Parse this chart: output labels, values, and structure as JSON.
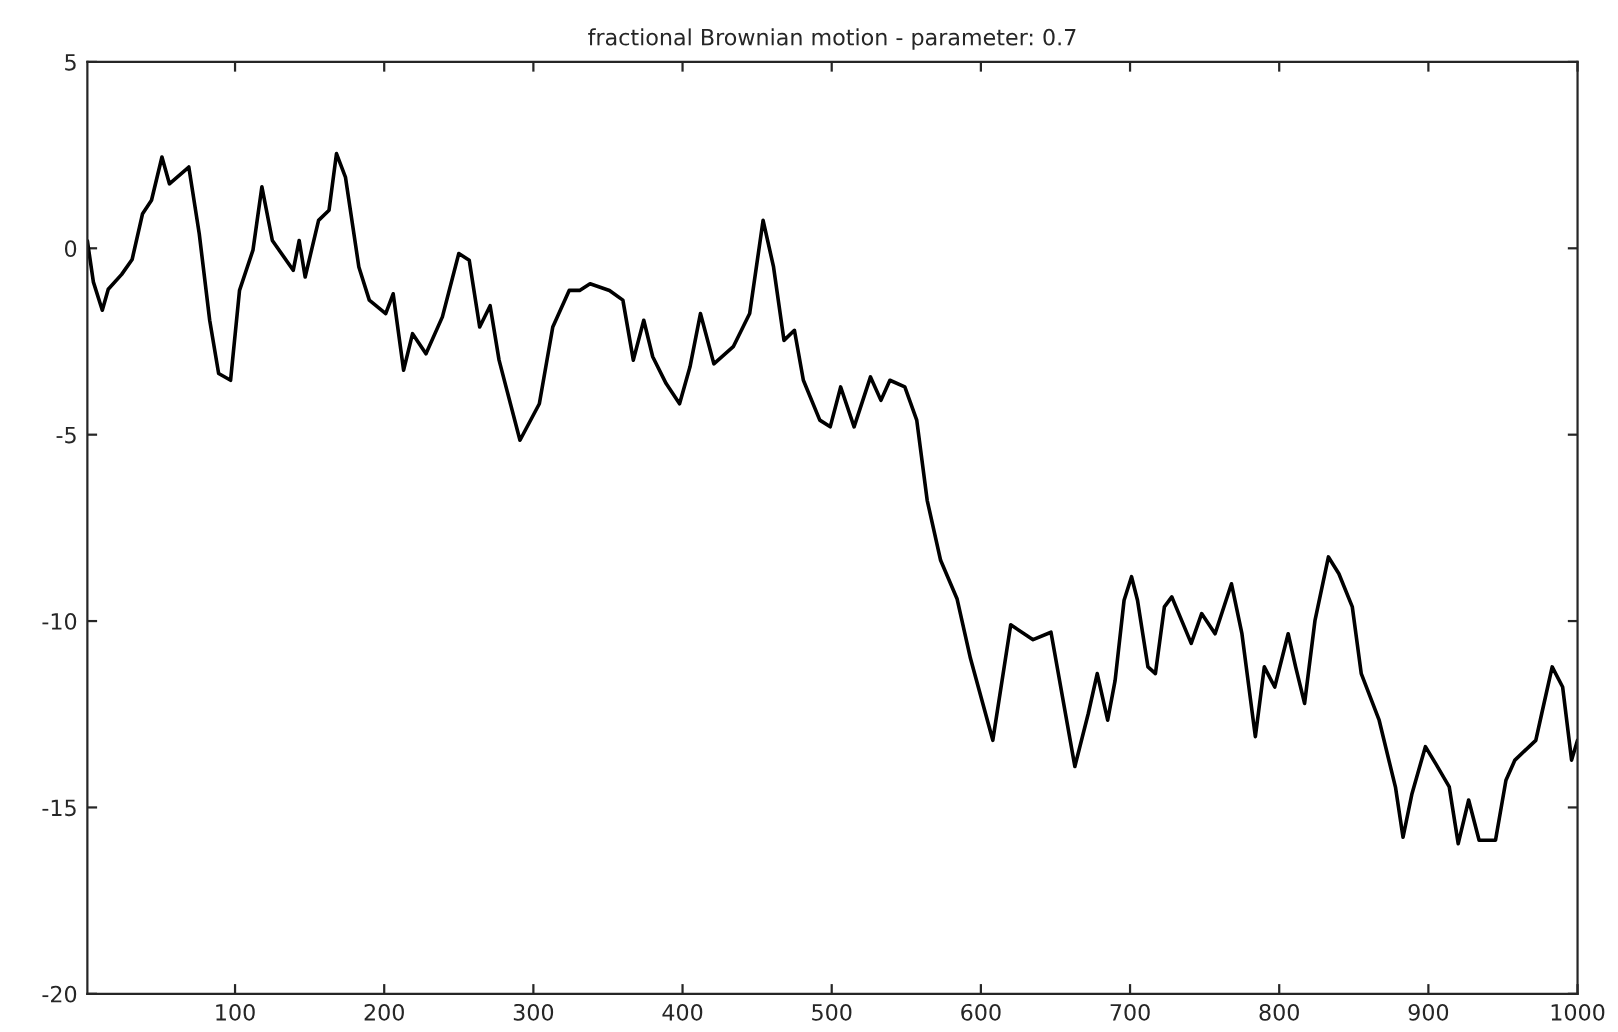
{
  "chart_data": {
    "type": "line",
    "title": "fractional Brownian motion - parameter: 0.7",
    "xlim": [
      1,
      1000
    ],
    "ylim": [
      -20,
      5
    ],
    "xticks": [
      100,
      200,
      300,
      400,
      500,
      600,
      700,
      800,
      900,
      1000
    ],
    "yticks": [
      -20,
      -15,
      -10,
      -5,
      0,
      5
    ],
    "grid": false,
    "marker": "none",
    "line_style": "solid",
    "series": [
      {
        "color": "#000000",
        "x": [
          1,
          5,
          11,
          15,
          24,
          31,
          38,
          44,
          51,
          56,
          69,
          76,
          83,
          89,
          97,
          103,
          112,
          118,
          125,
          139,
          143,
          147,
          156,
          163,
          168,
          174,
          183,
          190,
          201,
          206,
          213,
          219,
          228,
          239,
          250,
          257,
          264,
          271,
          277,
          291,
          304,
          313,
          324,
          331,
          338,
          351,
          360,
          367,
          374,
          380,
          389,
          398,
          405,
          412,
          421,
          434,
          445,
          454,
          461,
          468,
          475,
          481,
          492,
          499,
          506,
          515,
          526,
          533,
          539,
          549,
          557,
          564,
          573,
          584,
          593,
          608,
          620,
          635,
          647,
          663,
          672,
          678,
          685,
          690,
          696,
          701,
          705,
          712,
          717,
          723,
          728,
          741,
          748,
          757,
          768,
          775,
          784,
          790,
          797,
          806,
          811,
          817,
          824,
          833,
          840,
          849,
          855,
          867,
          878,
          883,
          889,
          898,
          905,
          914,
          920,
          927,
          934,
          945,
          952,
          958,
          972,
          976,
          983,
          990,
          996,
          1000
        ],
        "values": [
          0.2,
          -0.9,
          -1.66,
          -1.1,
          -0.7,
          -0.3,
          0.93,
          1.29,
          2.45,
          1.73,
          2.18,
          0.39,
          -1.93,
          -3.36,
          -3.54,
          -1.13,
          -0.05,
          1.65,
          0.21,
          -0.59,
          0.21,
          -0.77,
          0.75,
          1.02,
          2.54,
          1.91,
          -0.5,
          -1.39,
          -1.75,
          -1.22,
          -3.27,
          -2.29,
          -2.83,
          -1.84,
          -0.14,
          -0.32,
          -2.11,
          -1.54,
          -3.0,
          -5.15,
          -4.17,
          -2.11,
          -1.13,
          -1.13,
          -0.95,
          -1.13,
          -1.39,
          -3.0,
          -1.93,
          -2.91,
          -3.63,
          -4.17,
          -3.18,
          -1.75,
          -3.1,
          -2.64,
          -1.75,
          0.75,
          -0.5,
          -2.47,
          -2.2,
          -3.54,
          -4.61,
          -4.79,
          -3.72,
          -4.79,
          -3.45,
          -4.08,
          -3.54,
          -3.72,
          -4.61,
          -6.76,
          -8.37,
          -9.4,
          -11.0,
          -13.2,
          -10.1,
          -10.5,
          -10.3,
          -13.9,
          -12.48,
          -11.41,
          -12.66,
          -11.59,
          -9.44,
          -8.81,
          -9.44,
          -11.23,
          -11.41,
          -9.62,
          -9.35,
          -10.6,
          -9.8,
          -10.34,
          -9.0,
          -10.34,
          -13.1,
          -11.23,
          -11.77,
          -10.34,
          -11.23,
          -12.21,
          -9.98,
          -8.28,
          -8.73,
          -9.62,
          -11.41,
          -12.66,
          -14.47,
          -15.8,
          -14.63,
          -13.37,
          -13.83,
          -14.45,
          -15.97,
          -14.8,
          -15.88,
          -15.88,
          -14.27,
          -13.73,
          -13.2,
          -12.48,
          -11.23,
          -11.77,
          -13.73,
          -13.2
        ]
      }
    ]
  }
}
